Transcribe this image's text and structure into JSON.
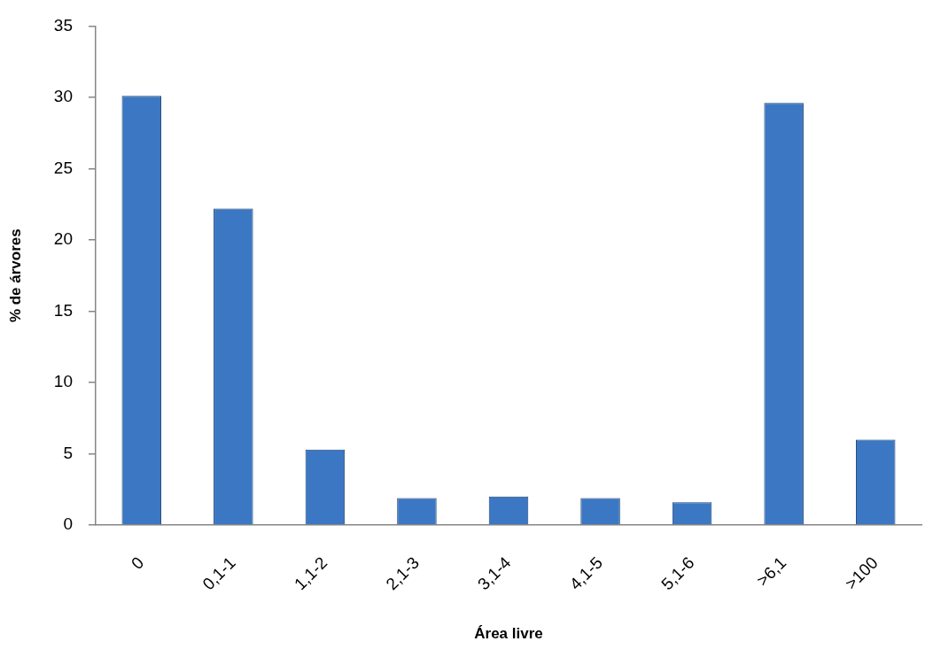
{
  "chart_data": {
    "type": "bar",
    "xlabel": "Área livre",
    "ylabel": "% de árvores",
    "categories": [
      "0",
      "0,1-1",
      "1,1-2",
      "2,1-3",
      "3,1-4",
      "4,1-5",
      "5,1-6",
      ">6,1",
      ">100"
    ],
    "values": [
      30.1,
      22.2,
      5.3,
      1.9,
      2.0,
      1.9,
      1.6,
      29.6,
      6.0
    ],
    "color": "#3b77c3",
    "ylim": [
      0,
      35
    ],
    "yticks": [
      0,
      5,
      10,
      15,
      20,
      25,
      30,
      35
    ]
  }
}
